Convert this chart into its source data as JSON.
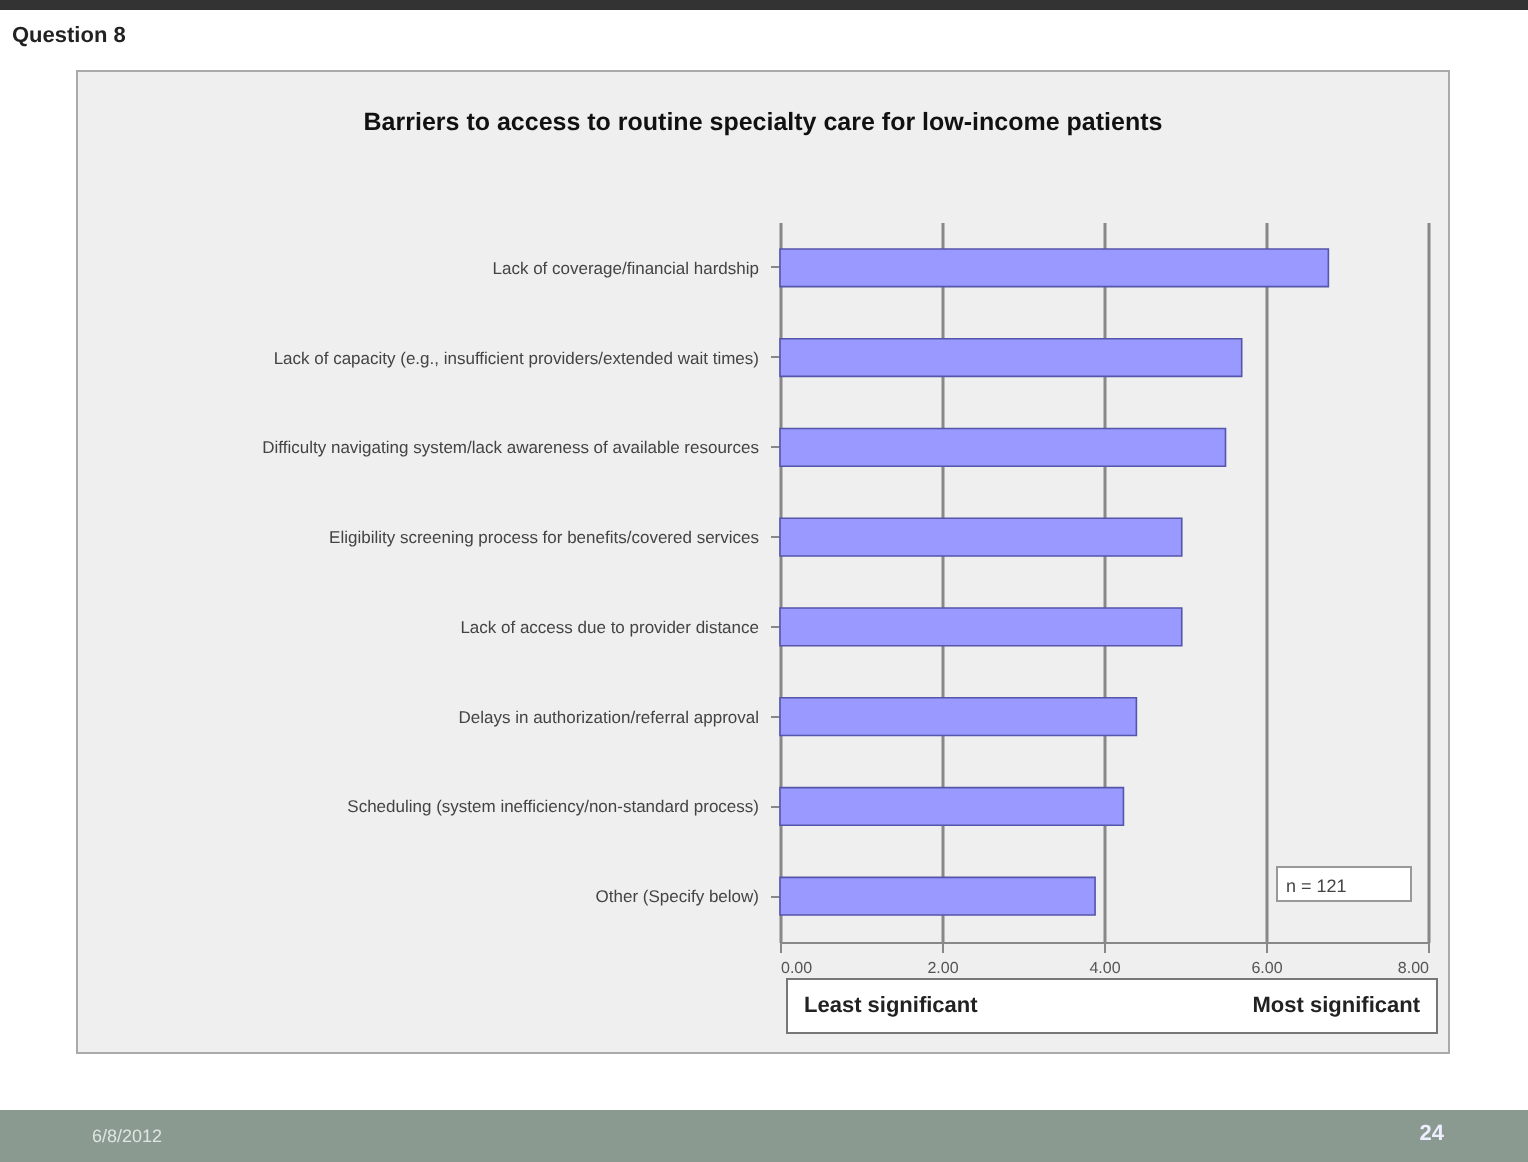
{
  "chart_data": {
    "type": "bar",
    "orientation": "horizontal",
    "title": "Barriers to access to routine specialty care for low-income patients",
    "categories": [
      "Lack of coverage/financial hardship",
      "Lack of capacity (e.g., insufficient providers/extended wait times)",
      "Difficulty navigating system/lack awareness of available resources",
      "Eligibility screening process for  benefits/covered services",
      "Lack of access due to provider distance",
      "Delays in authorization/referral approval",
      "Scheduling (system inefficiency/non-standard process)",
      "Other (Specify below)"
    ],
    "values": [
      6.77,
      5.7,
      5.5,
      4.96,
      4.96,
      4.4,
      4.24,
      3.89
    ],
    "color": "#9999ff",
    "xlim": [
      0,
      8
    ],
    "xticks": [
      {
        "value": 0,
        "label": "0.00"
      },
      {
        "value": 2,
        "label": "2.00"
      },
      {
        "value": 4,
        "label": "4.00"
      },
      {
        "value": 6,
        "label": "6.00"
      },
      {
        "value": 8,
        "label": "8.00"
      }
    ],
    "grid": "x",
    "annotations": [
      "Question 8",
      "n = 121",
      "Least significant",
      "Most significant",
      "6/8/2012",
      "24"
    ]
  }
}
